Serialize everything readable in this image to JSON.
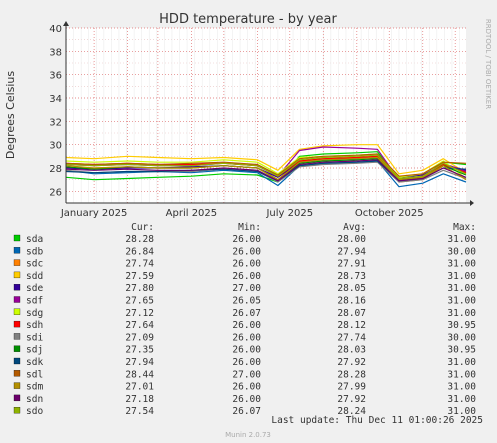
{
  "chart_data": {
    "type": "line",
    "title": "HDD temperature - by year",
    "ylabel": "Degrees Celsius",
    "xlabel": "",
    "ylim": [
      25,
      40
    ],
    "yticks": [
      26,
      28,
      30,
      32,
      34,
      36,
      38,
      40
    ],
    "xlim": [
      "2024-12-06",
      "2025-12-11"
    ],
    "xticks": [
      {
        "date": "2025-01-01",
        "label": "January 2025"
      },
      {
        "date": "2025-04-01",
        "label": "April 2025"
      },
      {
        "date": "2025-07-01",
        "label": "July 2025"
      },
      {
        "date": "2025-10-01",
        "label": "October 2025"
      }
    ],
    "grid": true,
    "watermark": "RRDTOOL / TOBI OETIKER",
    "x": [
      "2024-12-06",
      "2025-01-01",
      "2025-02-01",
      "2025-03-01",
      "2025-04-01",
      "2025-05-01",
      "2025-06-01",
      "2025-06-20",
      "2025-07-10",
      "2025-08-01",
      "2025-09-01",
      "2025-09-20",
      "2025-10-10",
      "2025-11-01",
      "2025-11-20",
      "2025-12-11"
    ],
    "series": [
      {
        "name": "sda",
        "color": "#00cc00",
        "values": [
          27.2,
          27.0,
          27.1,
          27.2,
          27.3,
          27.5,
          27.4,
          26.8,
          29.0,
          29.2,
          29.3,
          29.4,
          27.0,
          27.2,
          28.5,
          28.3
        ]
      },
      {
        "name": "sdb",
        "color": "#0066b3",
        "values": [
          27.8,
          27.5,
          27.6,
          27.7,
          27.6,
          27.8,
          27.6,
          26.5,
          28.2,
          28.4,
          28.5,
          28.6,
          26.4,
          26.7,
          27.5,
          26.8
        ]
      },
      {
        "name": "sdc",
        "color": "#ff8000",
        "values": [
          28.0,
          28.0,
          28.1,
          28.0,
          28.0,
          28.2,
          28.0,
          27.0,
          28.6,
          28.8,
          28.9,
          29.0,
          26.8,
          27.0,
          28.2,
          27.7
        ]
      },
      {
        "name": "sdd",
        "color": "#ffcc00",
        "values": [
          28.9,
          28.8,
          29.0,
          28.9,
          28.8,
          28.9,
          28.7,
          27.8,
          29.6,
          29.9,
          30.0,
          30.0,
          27.5,
          27.8,
          28.8,
          27.6
        ]
      },
      {
        "name": "sde",
        "color": "#330099",
        "values": [
          28.0,
          27.9,
          28.0,
          28.0,
          28.1,
          28.2,
          28.0,
          27.2,
          28.5,
          28.7,
          28.8,
          28.9,
          27.2,
          27.4,
          28.3,
          27.8
        ]
      },
      {
        "name": "sdf",
        "color": "#990099",
        "values": [
          28.3,
          28.2,
          28.3,
          28.2,
          28.2,
          28.4,
          28.2,
          27.3,
          29.5,
          29.8,
          29.7,
          29.6,
          27.0,
          27.3,
          28.4,
          27.7
        ]
      },
      {
        "name": "sdg",
        "color": "#ccff00",
        "values": [
          28.6,
          28.5,
          28.6,
          28.5,
          28.5,
          28.7,
          28.5,
          27.5,
          28.9,
          29.0,
          29.1,
          29.2,
          27.2,
          27.5,
          28.6,
          27.1
        ]
      },
      {
        "name": "sdh",
        "color": "#ff0000",
        "values": [
          28.4,
          28.3,
          28.4,
          28.3,
          28.3,
          28.4,
          28.2,
          27.3,
          28.6,
          28.8,
          28.9,
          29.0,
          27.0,
          27.3,
          28.3,
          27.6
        ]
      },
      {
        "name": "sdi",
        "color": "#808080",
        "values": [
          27.8,
          27.6,
          27.7,
          27.7,
          27.7,
          27.9,
          27.7,
          26.8,
          28.1,
          28.3,
          28.4,
          28.5,
          26.8,
          27.0,
          27.8,
          27.1
        ]
      },
      {
        "name": "sdj",
        "color": "#008f00",
        "values": [
          28.1,
          27.9,
          28.1,
          28.0,
          28.0,
          28.2,
          28.0,
          27.0,
          28.4,
          28.6,
          28.7,
          28.8,
          27.0,
          27.2,
          28.2,
          27.4
        ]
      },
      {
        "name": "sdk",
        "color": "#00487d",
        "values": [
          27.7,
          27.6,
          27.7,
          27.7,
          27.8,
          27.9,
          27.7,
          26.9,
          28.2,
          28.4,
          28.5,
          28.6,
          26.9,
          27.1,
          28.0,
          27.9
        ]
      },
      {
        "name": "sdl",
        "color": "#b35a00",
        "values": [
          28.4,
          28.3,
          28.4,
          28.3,
          28.4,
          28.5,
          28.3,
          27.4,
          28.8,
          29.0,
          29.1,
          29.2,
          27.3,
          27.5,
          28.5,
          28.4
        ]
      },
      {
        "name": "sdm",
        "color": "#b38f00",
        "values": [
          28.2,
          28.0,
          28.1,
          28.0,
          28.0,
          28.2,
          28.0,
          27.0,
          28.5,
          28.7,
          28.8,
          28.9,
          27.0,
          27.2,
          28.2,
          27.0
        ]
      },
      {
        "name": "sdn",
        "color": "#6b006b",
        "values": [
          27.9,
          27.8,
          27.9,
          27.8,
          27.8,
          28.0,
          27.8,
          26.9,
          28.3,
          28.5,
          28.6,
          28.7,
          26.9,
          27.1,
          28.0,
          27.2
        ]
      },
      {
        "name": "sdo",
        "color": "#8fb300",
        "values": [
          28.3,
          28.2,
          28.3,
          28.2,
          28.2,
          28.4,
          28.2,
          27.3,
          28.7,
          28.9,
          29.0,
          29.1,
          27.1,
          27.3,
          28.4,
          27.5
        ]
      }
    ]
  },
  "legend": {
    "headers": {
      "cur": "Cur:",
      "min": "Min:",
      "avg": "Avg:",
      "max": "Max:"
    },
    "rows": [
      {
        "name": "sda",
        "color": "#00cc00",
        "cur": "28.28",
        "min": "26.00",
        "avg": "28.00",
        "max": "31.00"
      },
      {
        "name": "sdb",
        "color": "#0066b3",
        "cur": "26.84",
        "min": "26.00",
        "avg": "27.94",
        "max": "30.00"
      },
      {
        "name": "sdc",
        "color": "#ff8000",
        "cur": "27.74",
        "min": "26.00",
        "avg": "27.91",
        "max": "31.00"
      },
      {
        "name": "sdd",
        "color": "#ffcc00",
        "cur": "27.59",
        "min": "26.00",
        "avg": "28.73",
        "max": "31.00"
      },
      {
        "name": "sde",
        "color": "#330099",
        "cur": "27.80",
        "min": "27.00",
        "avg": "28.05",
        "max": "31.00"
      },
      {
        "name": "sdf",
        "color": "#990099",
        "cur": "27.65",
        "min": "26.05",
        "avg": "28.16",
        "max": "31.00"
      },
      {
        "name": "sdg",
        "color": "#ccff00",
        "cur": "27.12",
        "min": "26.07",
        "avg": "28.07",
        "max": "31.00"
      },
      {
        "name": "sdh",
        "color": "#ff0000",
        "cur": "27.64",
        "min": "26.00",
        "avg": "28.12",
        "max": "30.95"
      },
      {
        "name": "sdi",
        "color": "#808080",
        "cur": "27.09",
        "min": "26.00",
        "avg": "27.74",
        "max": "30.00"
      },
      {
        "name": "sdj",
        "color": "#008f00",
        "cur": "27.35",
        "min": "26.00",
        "avg": "28.03",
        "max": "30.95"
      },
      {
        "name": "sdk",
        "color": "#00487d",
        "cur": "27.94",
        "min": "26.00",
        "avg": "27.92",
        "max": "31.00"
      },
      {
        "name": "sdl",
        "color": "#b35a00",
        "cur": "28.44",
        "min": "27.00",
        "avg": "28.28",
        "max": "31.00"
      },
      {
        "name": "sdm",
        "color": "#b38f00",
        "cur": "27.01",
        "min": "26.00",
        "avg": "27.99",
        "max": "31.00"
      },
      {
        "name": "sdn",
        "color": "#6b006b",
        "cur": "27.18",
        "min": "26.00",
        "avg": "27.92",
        "max": "31.00"
      },
      {
        "name": "sdo",
        "color": "#8fb300",
        "cur": "27.54",
        "min": "26.07",
        "avg": "28.24",
        "max": "31.00"
      }
    ]
  },
  "footer": {
    "last_update": "Last update: Thu Dec 11 01:00:26 2025",
    "version": "Munin 2.0.73"
  }
}
